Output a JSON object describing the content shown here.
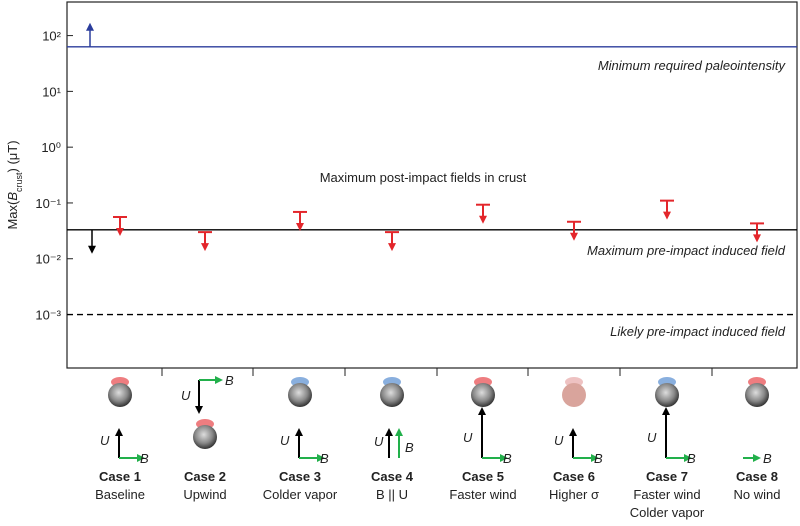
{
  "chart_data": {
    "type": "upper-limit",
    "y_label": {
      "prefix": "Max(",
      "var": "B",
      "sub": "crust",
      "suffix": ") (μT)"
    },
    "log_y": true,
    "ylim": [
      0.00011,
      400
    ],
    "yticks": [
      {
        "value": 100,
        "label": "10²"
      },
      {
        "value": 10,
        "label": "10¹"
      },
      {
        "value": 1,
        "label": "10⁰"
      },
      {
        "value": 0.1,
        "label": "10⁻¹"
      },
      {
        "value": 0.01,
        "label": "10⁻²"
      },
      {
        "value": 0.001,
        "label": "10⁻³"
      }
    ],
    "series": [
      {
        "name": "Maximum post-impact fields in crust",
        "color": "#e3262b",
        "values": [
          0.056,
          0.03,
          0.069,
          0.03,
          0.093,
          0.046,
          0.11,
          0.043
        ]
      }
    ],
    "reference_lines": [
      {
        "value": 63,
        "color": "#2b3d9c",
        "style": "solid",
        "direction": "up",
        "label": "Minimum required paleointensity"
      },
      {
        "value": 0.033,
        "color": "#000000",
        "style": "solid",
        "direction": "down",
        "label": "Maximum pre-impact induced field"
      },
      {
        "value": 0.001,
        "color": "#000000",
        "style": "dashed",
        "label": "Likely pre-impact induced field"
      }
    ],
    "cases": [
      {
        "name": "Case 1",
        "description": [
          "Baseline"
        ],
        "halo": "#e3262b",
        "arrow_labels": [
          "U",
          "B"
        ]
      },
      {
        "name": "Case 2",
        "description": [
          "Upwind"
        ],
        "halo": "#e3262b",
        "arrow_labels": [
          "U",
          "B"
        ]
      },
      {
        "name": "Case 3",
        "description": [
          "Colder vapor"
        ],
        "halo": "#3a7ac8",
        "arrow_labels": [
          "U",
          "B"
        ]
      },
      {
        "name": "Case 4",
        "description": [
          "B || U"
        ],
        "halo": "#3a7ac8",
        "arrow_labels": [
          "U",
          "B"
        ]
      },
      {
        "name": "Case 5",
        "description": [
          "Faster wind"
        ],
        "halo": "#e3262b",
        "arrow_labels": [
          "U",
          "B"
        ]
      },
      {
        "name": "Case 6",
        "description": [
          "Higher σ"
        ],
        "halo": "#e39a9a",
        "arrow_labels": [
          "U",
          "B"
        ]
      },
      {
        "name": "Case 7",
        "description": [
          "Faster wind",
          "Colder vapor"
        ],
        "halo": "#3a7ac8",
        "arrow_labels": [
          "U",
          "B"
        ]
      },
      {
        "name": "Case 8",
        "description": [
          "No wind"
        ],
        "halo": "#e3262b",
        "arrow_labels": [
          "B"
        ]
      }
    ]
  }
}
